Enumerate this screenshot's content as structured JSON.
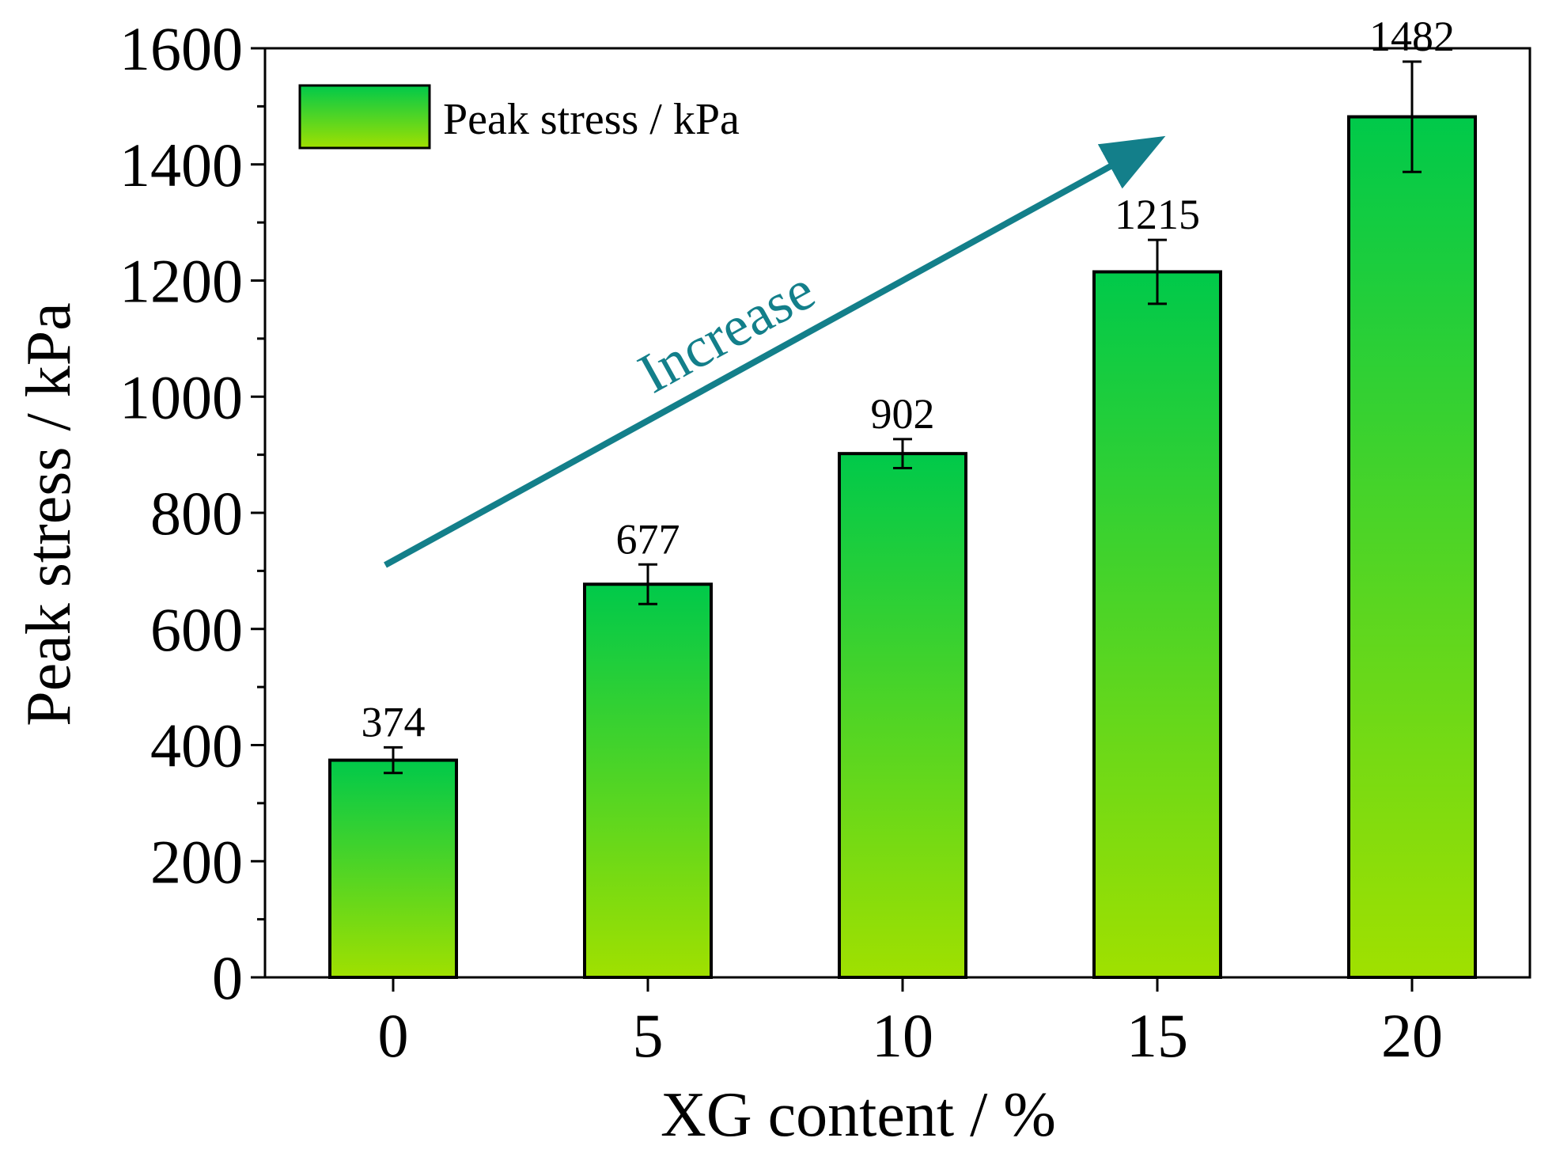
{
  "chart_data": {
    "type": "bar",
    "title": "",
    "categories": [
      "0",
      "5",
      "10",
      "15",
      "20"
    ],
    "values": [
      374,
      677,
      902,
      1215,
      1482
    ],
    "errors": [
      22,
      34,
      25,
      55,
      95
    ],
    "data_labels": [
      "374",
      "677",
      "902",
      "1215",
      "1482"
    ],
    "xlabel": "XG content / %",
    "ylabel": "Peak stress / kPa",
    "ylim": [
      0,
      1600
    ],
    "yticks": [
      0,
      200,
      400,
      600,
      800,
      1000,
      1200,
      1400,
      1600
    ],
    "ytick_labels": [
      "0",
      "200",
      "400",
      "600",
      "800",
      "1000",
      "1200",
      "1400",
      "1600"
    ],
    "grid": false,
    "legend": {
      "label": "Peak stress / kPa",
      "position": "top-left"
    },
    "annotation": {
      "text": "Increase",
      "arrow_from": {
        "category": 0,
        "value": 710
      },
      "arrow_to": {
        "category": 3.06,
        "value": 1455
      }
    },
    "colors": {
      "bar_top": "#00c94a",
      "bar_bottom": "#a0e000",
      "arrow": "#137f8a",
      "annotation_text": "#137f8a",
      "axis": "#000000"
    }
  }
}
